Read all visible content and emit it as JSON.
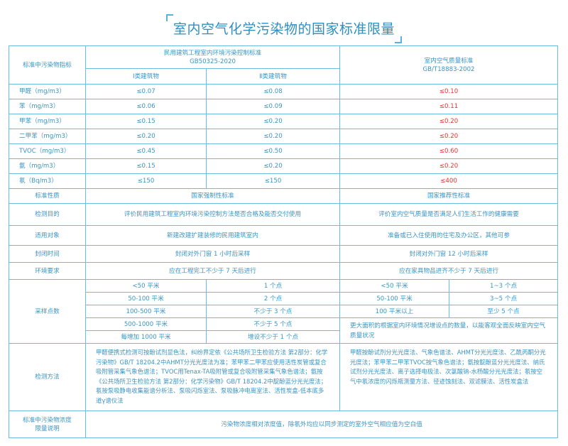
{
  "title": "室内空气化学污染物的国家标准限量",
  "colors": {
    "border": "#6cbbe0",
    "text": "#3b95c4",
    "highlight": "#e8312f"
  },
  "header": {
    "indicator": "标准中污染物指标",
    "gb50325_name": "民用建筑工程室内环境污染控制标准",
    "gb50325_code": "GB50325-2020",
    "class1": "Ⅰ类建筑物",
    "class2": "Ⅱ类建筑物",
    "gb18883_name": "室内空气质量标准",
    "gb18883_code": "GB/T18883-2002"
  },
  "pollutants": [
    {
      "name": "甲醛（mg/m3）",
      "c1": "≤0.07",
      "c2": "≤0.08",
      "gb": "≤0.10"
    },
    {
      "name": "苯（mg/m3）",
      "c1": "≤0.06",
      "c2": "≤0.09",
      "gb": "≤0.11"
    },
    {
      "name": "甲苯（mg/m3）",
      "c1": "≤0.15",
      "c2": "≤0.20",
      "gb": "≤0.20"
    },
    {
      "name": "二甲苯（mg/m3）",
      "c1": "≤0.20",
      "c2": "≤0.20",
      "gb": "≤0.20"
    },
    {
      "name": "TVOC（mg/m3）",
      "c1": "≤0.45",
      "c2": "≤0.50",
      "gb": "≤0.60"
    },
    {
      "name": "氨（mg/m3）",
      "c1": "≤0.15",
      "c2": "≤0.20",
      "gb": "≤0.20"
    },
    {
      "name": "氡（Bq/m3）",
      "c1": "≤150",
      "c2": "≤150",
      "gb": "≤400"
    }
  ],
  "info_rows": [
    {
      "label": "标准性质",
      "a": "国家强制性标准",
      "b": "国家推荐性标准"
    },
    {
      "label": "检测目的",
      "a": "评价民用建筑工程室内环境污染控制方法是否合格及能否交付使用",
      "b": "评价室内空气质量是否满足人们生活工作的健康需要"
    },
    {
      "label": "适用对象",
      "a": "新建改建扩建装修的民用建筑室内",
      "b": "准备或已入住使用的住宅及办公区，其他可参"
    },
    {
      "label": "封闭时间",
      "a": "封闭对外门窗 1 小时后采样",
      "b": "封闭对外门窗 12 小时后采样"
    },
    {
      "label": "环境要求",
      "a": "应在工程完工不少于 7 天后进行",
      "b": "应在家具物品进齐不少于 7 天后进行"
    }
  ],
  "sampling": {
    "label": "采样点数",
    "left": [
      {
        "area": "<50 平米",
        "points": "1 个点"
      },
      {
        "area": "50-100 平米",
        "points": "2 个点"
      },
      {
        "area": "100-500 平米",
        "points": "不少于 3 个点"
      },
      {
        "area": "500-1000 平米",
        "points": "不少于 5 个点"
      },
      {
        "area": "每增加 1000 平米",
        "points": "增设不少于 1 个点"
      }
    ],
    "right": [
      {
        "area": "<50 平米",
        "points": "1~3 个点"
      },
      {
        "area": "50-100 平米",
        "points": "3~5 个点"
      },
      {
        "area": "100 平米以上",
        "points": "至少 5 个点"
      }
    ],
    "right_note": "更大面积的根据室内环境情况增设点的数量，以能客观全面反映室内空气质量状况"
  },
  "methods": {
    "label": "检测方法",
    "a": "甲醛便携式检测可按酚试剂显色法，纠纷界定依《公共场所卫生检验方法 第2部分：化学污染物》GB/T 18204.2中AHMT分光光度法为准；苯甲苯二甲苯应使用活性炭管或复合吸附管采集气象色谱法；TVOC用Tenax-TA吸附管或复合吸附管采集气象色谱法；氨按《公共场所卫生检验方法 第2部分：化学污染物》GB/T 18204.2中靛酚蓝分光光度法；氡按泵吸静电收集能谱分析法、泵吸闪烁室法、泵吸脉冲电离室法、活性炭盒-低本底多道γ谱仪法",
    "b": "甲醛按酚试剂分光光度法、气象色谱法、AHMT分光光度法、乙酰丙酮分光光度法；苯甲苯二甲苯TVOC按气象色谱法；氨按靛酚蓝分光光度法、纳氏试剂分光光度法、离子选择电极法、次氯酸钠-水杨酸分光光度法；氡按空气中氡浓度的闪烁瓶测量方法、径迹蚀刻法、双滤膜法、活性炭盒法"
  },
  "note": {
    "label": "标准中污染物浓度限量说明",
    "text": "污染物浓度相对浓度值，除氡外均应以同步测定的室外空气相应值为空白值"
  }
}
